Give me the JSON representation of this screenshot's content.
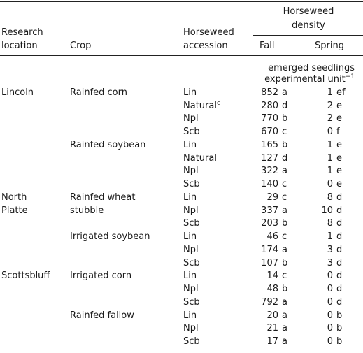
{
  "header": {
    "location": [
      "Research",
      "location"
    ],
    "crop": "Crop",
    "accession": [
      "Horseweed",
      "accession"
    ],
    "density": [
      "Horseweed",
      "density"
    ],
    "fall": "Fall",
    "spring": "Spring"
  },
  "units": {
    "line1": "emerged seedlings",
    "line2": "experimental unit",
    "exponent": "−1"
  },
  "rows": [
    {
      "location": [
        "Lincoln"
      ],
      "crop": [
        "Rainfed corn"
      ],
      "accession": "Lin",
      "fall": "852",
      "fall_letter": "a",
      "spring": "1",
      "spring_letter": "ef"
    },
    {
      "accession": "Natural",
      "accession_note": "c",
      "fall": "280",
      "fall_letter": "d",
      "spring": "2",
      "spring_letter": "e"
    },
    {
      "accession": "Npl",
      "fall": "770",
      "fall_letter": "b",
      "spring": "2",
      "spring_letter": "e"
    },
    {
      "accession": "Scb",
      "fall": "670",
      "fall_letter": "c",
      "spring": "0",
      "spring_letter": "f"
    },
    {
      "crop": [
        "Rainfed soybean"
      ],
      "accession": "Lin",
      "fall": "165",
      "fall_letter": "b",
      "spring": "1",
      "spring_letter": "e"
    },
    {
      "accession": "Natural",
      "fall": "127",
      "fall_letter": "d",
      "spring": "1",
      "spring_letter": "e"
    },
    {
      "accession": "Npl",
      "fall": "322",
      "fall_letter": "a",
      "spring": "1",
      "spring_letter": "e"
    },
    {
      "accession": "Scb",
      "fall": "140",
      "fall_letter": "c",
      "spring": "0",
      "spring_letter": "e"
    },
    {
      "location": [
        "North",
        "Platte"
      ],
      "crop": [
        "Rainfed wheat",
        "stubble"
      ],
      "accession": "Lin",
      "fall": "29",
      "fall_letter": "c",
      "spring": "8",
      "spring_letter": "d"
    },
    {
      "accession": "Npl",
      "fall": "337",
      "fall_letter": "a",
      "spring": "10",
      "spring_letter": "d"
    },
    {
      "accession": "Scb",
      "fall": "203",
      "fall_letter": "b",
      "spring": "8",
      "spring_letter": "d"
    },
    {
      "crop": [
        "Irrigated soybean"
      ],
      "accession": "Lin",
      "fall": "46",
      "fall_letter": "c",
      "spring": "1",
      "spring_letter": "d"
    },
    {
      "accession": "Npl",
      "fall": "174",
      "fall_letter": "a",
      "spring": "3",
      "spring_letter": "d"
    },
    {
      "accession": "Scb",
      "fall": "107",
      "fall_letter": "b",
      "spring": "3",
      "spring_letter": "d"
    },
    {
      "location": [
        "Scottsbluff"
      ],
      "crop": [
        "Irrigated corn"
      ],
      "accession": "Lin",
      "fall": "14",
      "fall_letter": "c",
      "spring": "0",
      "spring_letter": "d"
    },
    {
      "accession": "Npl",
      "fall": "48",
      "fall_letter": "b",
      "spring": "0",
      "spring_letter": "d"
    },
    {
      "accession": "Scb",
      "fall": "792",
      "fall_letter": "a",
      "spring": "0",
      "spring_letter": "d"
    },
    {
      "crop": [
        "Rainfed fallow"
      ],
      "accession": "Lin",
      "fall": "20",
      "fall_letter": "a",
      "spring": "0",
      "spring_letter": "b"
    },
    {
      "accession": "Npl",
      "fall": "21",
      "fall_letter": "a",
      "spring": "0",
      "spring_letter": "b"
    },
    {
      "accession": "Scb",
      "fall": "17",
      "fall_letter": "a",
      "spring": "0",
      "spring_letter": "b"
    }
  ]
}
